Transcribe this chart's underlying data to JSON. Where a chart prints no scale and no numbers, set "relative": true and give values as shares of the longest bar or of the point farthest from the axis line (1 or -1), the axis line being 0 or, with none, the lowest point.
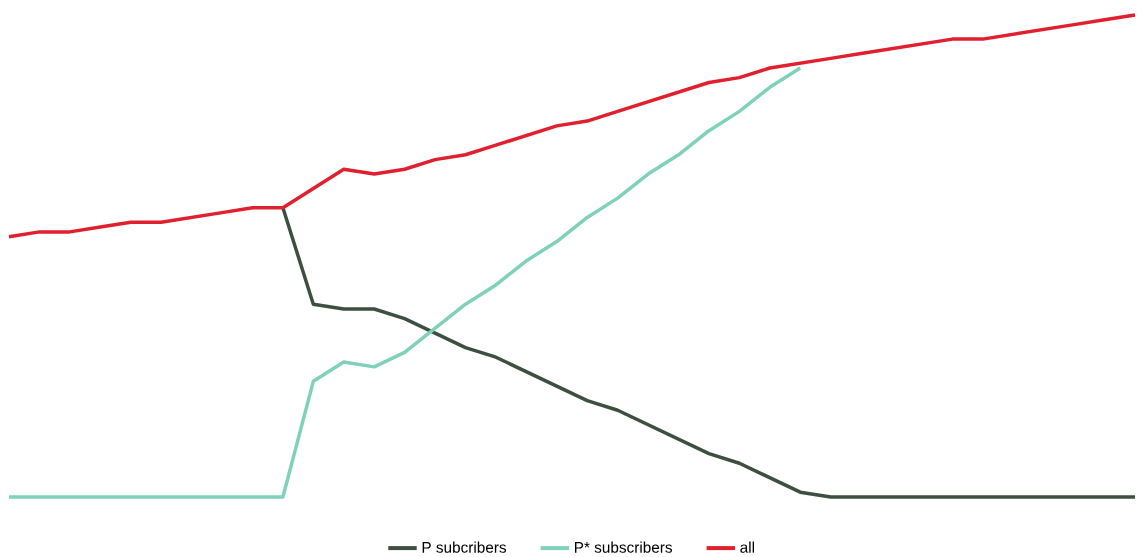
{
  "chart_data": {
    "type": "line",
    "relative": true,
    "legend": "bottom",
    "categories": [
      null,
      null,
      null,
      null,
      null,
      null,
      null,
      null,
      null,
      null,
      null,
      null,
      null,
      null,
      null,
      null,
      null,
      null,
      null,
      null,
      null,
      null,
      null,
      null,
      null,
      null,
      null,
      null,
      null,
      null,
      null,
      null,
      null,
      null,
      null,
      null,
      null,
      null
    ],
    "series": [
      {
        "name": "P subcribers",
        "color": "#3d4f3f",
        "values": [
          null,
          null,
          null,
          null,
          null,
          null,
          null,
          null,
          null,
          0.6,
          0.4,
          0.39,
          0.39,
          0.37,
          0.34,
          0.31,
          0.29,
          0.26,
          0.23,
          0.2,
          0.18,
          0.15,
          0.12,
          0.09,
          0.07,
          0.04,
          0.01,
          0,
          0,
          0,
          0,
          0,
          0,
          0,
          0,
          0,
          0,
          0
        ]
      },
      {
        "name": "P* subscribers",
        "color": "#7fd1b9",
        "values": [
          0,
          0,
          0,
          0,
          0,
          0,
          0,
          0,
          0,
          0,
          0.24,
          0.28,
          0.27,
          0.3,
          0.35,
          0.4,
          0.44,
          0.49,
          0.53,
          0.58,
          0.62,
          0.67,
          0.71,
          0.76,
          0.8,
          0.85,
          0.89,
          null,
          null,
          null,
          null,
          null,
          null,
          null,
          null,
          null,
          null,
          null
        ]
      },
      {
        "name": "all",
        "color": "#e0202e",
        "values": [
          0.54,
          0.55,
          0.55,
          0.56,
          0.57,
          0.57,
          0.58,
          0.59,
          0.6,
          0.6,
          0.64,
          0.68,
          0.67,
          0.68,
          0.7,
          0.71,
          0.73,
          0.75,
          0.77,
          0.78,
          0.8,
          0.82,
          0.84,
          0.86,
          0.87,
          0.89,
          0.9,
          0.91,
          0.92,
          0.93,
          0.94,
          0.95,
          0.95,
          0.96,
          0.97,
          0.98,
          0.99,
          1
        ]
      }
    ]
  }
}
